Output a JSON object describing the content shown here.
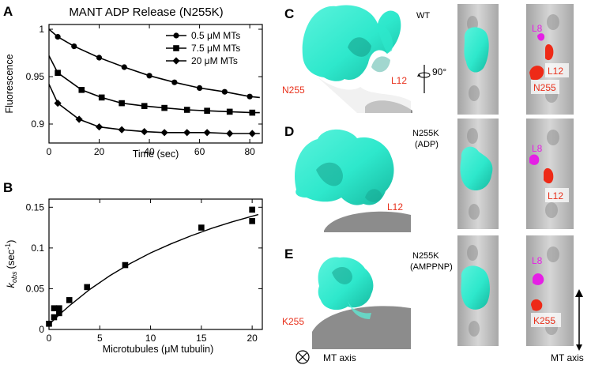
{
  "panels": {
    "A": {
      "letter": "A"
    },
    "B": {
      "letter": "B"
    },
    "C": {
      "letter": "C",
      "variant": "WT",
      "rotation": "90°",
      "labels": {
        "n255": "N255",
        "l12": "L12",
        "l8": "L8",
        "n255_side": "N255",
        "l12_side": "L12"
      }
    },
    "D": {
      "letter": "D",
      "variant_line1": "N255K",
      "variant_line2": "(ADP)",
      "labels": {
        "l12": "L12",
        "l8": "L8",
        "l12_side": "L12"
      }
    },
    "E": {
      "letter": "E",
      "variant_line1": "N255K",
      "variant_line2": "(AMPPNP)",
      "labels": {
        "k255": "K255",
        "l8": "L8",
        "k255_side": "K255"
      }
    }
  },
  "legend_bottom": {
    "mt_axis_left": "MT axis",
    "mt_axis_right": "MT axis"
  },
  "colors": {
    "kinesin": "#2ee8cc",
    "microtubule": "#b4b4b4",
    "loop_red": "#ee2a17",
    "loop_magenta": "#e51fe5",
    "label_red": "#e8311c",
    "label_magenta": "#e51fe5"
  },
  "chart_data": [
    {
      "type": "line",
      "title": "MANT ADP Release (N255K)",
      "xlabel": "Time (sec)",
      "ylabel": "Fluorescence",
      "xlim": [
        0,
        85
      ],
      "ylim": [
        0.88,
        1.005
      ],
      "xticks": [
        0,
        20,
        40,
        60,
        80
      ],
      "yticks": [
        0.9,
        0.95,
        1
      ],
      "ytick_labels": [
        "0.9",
        "0.95",
        "1"
      ],
      "legend_position": "top-right",
      "series": [
        {
          "name": "0.5 μM MTs",
          "marker": "circle",
          "x": [
            0,
            3.5,
            10,
            20,
            30,
            40,
            50,
            60,
            70,
            80,
            84
          ],
          "y": [
            1.0,
            0.992,
            0.982,
            0.97,
            0.96,
            0.951,
            0.944,
            0.938,
            0.934,
            0.929,
            0.928
          ]
        },
        {
          "name": "7.5 μM MTs",
          "marker": "square",
          "x": [
            0,
            3.5,
            13,
            21,
            29,
            38,
            46,
            55,
            63,
            72,
            81,
            84
          ],
          "y": [
            0.972,
            0.954,
            0.936,
            0.928,
            0.922,
            0.919,
            0.917,
            0.915,
            0.914,
            0.913,
            0.912,
            0.912
          ]
        },
        {
          "name": "20 μM MTs",
          "marker": "diamond",
          "x": [
            0,
            3.5,
            12,
            20,
            29,
            38,
            46,
            55,
            63,
            72,
            81,
            84
          ],
          "y": [
            0.942,
            0.922,
            0.905,
            0.897,
            0.894,
            0.892,
            0.891,
            0.891,
            0.891,
            0.89,
            0.89,
            0.89
          ]
        }
      ]
    },
    {
      "type": "scatter",
      "xlabel": "Microtubules (μM tubulin)",
      "ylabel_main": "k",
      "ylabel_sub": "obs",
      "ylabel_unit": "(sec",
      "ylabel_sup": "-1",
      "ylabel_close": ")",
      "xlim": [
        0,
        21
      ],
      "ylim": [
        0,
        0.16
      ],
      "xticks": [
        0,
        5,
        10,
        15,
        20
      ],
      "yticks": [
        0,
        0.05,
        0.1,
        0.15
      ],
      "ytick_labels": [
        "0",
        "0.05",
        "0.1",
        "0.15"
      ],
      "points": {
        "x": [
          0,
          0.5,
          0.5,
          1,
          1,
          2,
          3.75,
          7.5,
          15,
          20,
          20
        ],
        "y": [
          0.007,
          0.015,
          0.026,
          0.02,
          0.026,
          0.036,
          0.052,
          0.079,
          0.125,
          0.147,
          0.133
        ]
      },
      "fit": {
        "x": [
          0,
          1,
          2,
          4,
          6,
          8,
          10,
          12,
          14,
          16,
          18,
          20,
          20.6
        ],
        "y": [
          0.006,
          0.018,
          0.029,
          0.049,
          0.066,
          0.081,
          0.094,
          0.105,
          0.115,
          0.124,
          0.132,
          0.139,
          0.141
        ]
      }
    }
  ]
}
